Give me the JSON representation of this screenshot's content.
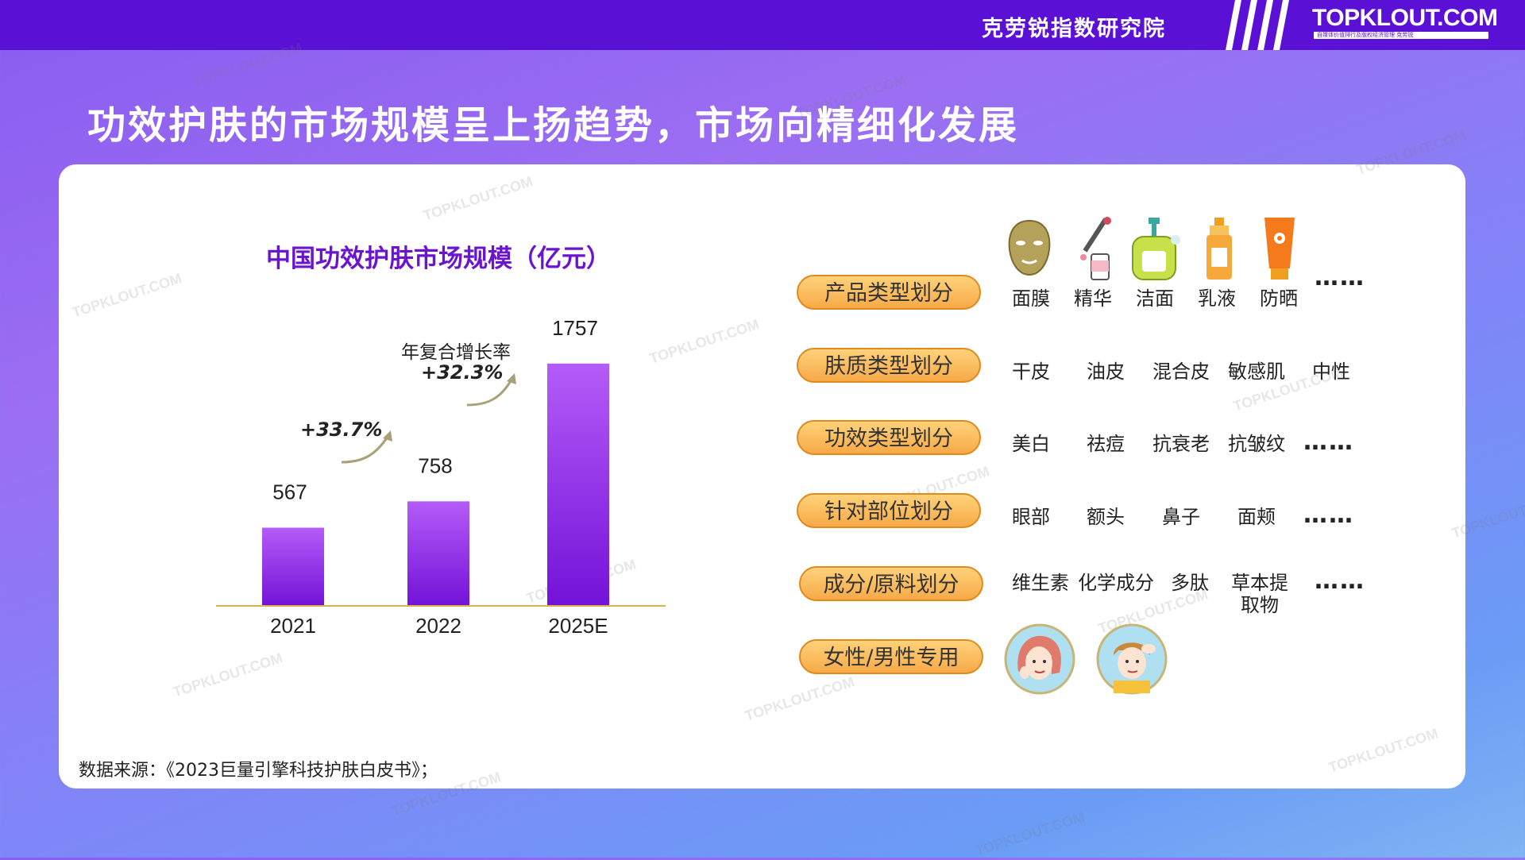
{
  "header": {
    "org_name": "克劳锐指数研究院",
    "brand": "TOPKLOUT.COM",
    "brand_tagline": "自媒体价值排行及版权经济管理 克劳锐"
  },
  "headline": "功效护肤的市场规模呈上扬趋势，市场向精细化发展",
  "watermark": "TOPKLOUT.COM",
  "chart_data": {
    "type": "bar",
    "title": "中国功效护肤市场规模（亿元）",
    "categories": [
      "2021",
      "2022",
      "2025E"
    ],
    "values": [
      567,
      758,
      1757
    ],
    "xlabel": "",
    "ylabel": "",
    "ylim": [
      0,
      1900
    ],
    "grid": false,
    "bar_color": "#8b2cf0",
    "annotations": {
      "growth_2021_2022": "+33.7%",
      "cagr_label": "年复合增长率",
      "cagr_value": "+32.3%"
    }
  },
  "source": "数据来源：《2023巨量引擎科技护肤白皮书》；",
  "segments": [
    {
      "label": "产品类型划分",
      "items": [
        "面膜",
        "精华",
        "洁面",
        "乳液",
        "防晒"
      ],
      "icons": [
        "face-mask-icon",
        "serum-dropper-icon",
        "cleanser-pump-icon",
        "lotion-bottle-icon",
        "sunscreen-tube-icon"
      ],
      "more": "……"
    },
    {
      "label": "肤质类型划分",
      "items": [
        "干皮",
        "油皮",
        "混合皮",
        "敏感肌",
        "中性"
      ]
    },
    {
      "label": "功效类型划分",
      "items": [
        "美白",
        "祛痘",
        "抗衰老",
        "抗皱纹"
      ],
      "more": "……"
    },
    {
      "label": "针对部位划分",
      "items": [
        "眼部",
        "额头",
        "鼻子",
        "面颊"
      ],
      "more": "……"
    },
    {
      "label": "成分/原料划分",
      "items": [
        "维生素",
        "化学成分",
        "多肽",
        "草本提\n取物"
      ],
      "more": "……"
    },
    {
      "label": "女性/男性专用",
      "icons": [
        "woman-skincare-icon",
        "man-skincare-icon"
      ]
    }
  ],
  "colors": {
    "top_bar": "#5b10d6",
    "pill_fill": "#f9b955",
    "chart_title": "#6a14cf"
  }
}
